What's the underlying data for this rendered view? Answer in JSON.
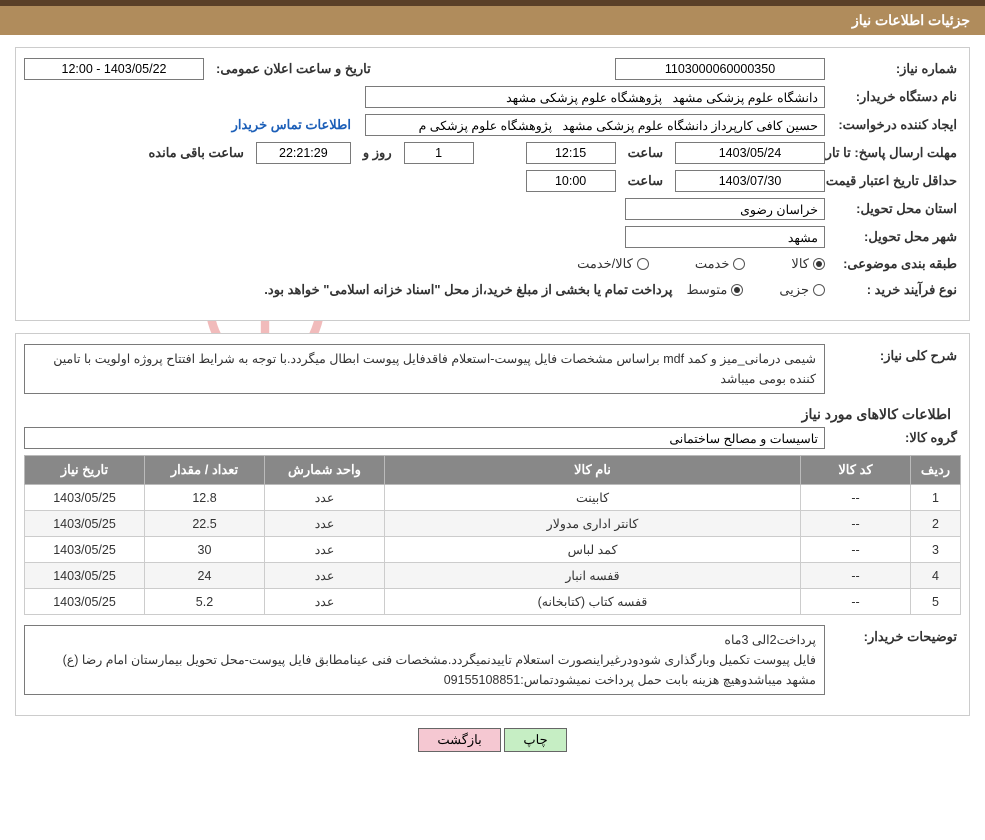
{
  "colors": {
    "topbar": "#5a4028",
    "header": "#b08c5c",
    "header_text": "#ffffff",
    "border": "#cccccc",
    "input_border": "#7a7a7a",
    "link": "#1c5fb8",
    "th_bg": "#888888",
    "btn_print": "#c6eec4",
    "btn_back": "#f5c8d2",
    "watermark": "rgba(150,150,150,0.25)"
  },
  "header": {
    "title": "جزئیات اطلاعات نیاز"
  },
  "fields": {
    "need_number_label": "شماره نیاز:",
    "need_number": "1103000060000350",
    "public_announce_label": "تاریخ و ساعت اعلان عمومی:",
    "public_announce": "1403/05/22 - 12:00",
    "buyer_org_label": "نام دستگاه خریدار:",
    "buyer_org": "دانشگاه علوم پزشکی مشهد   پژوهشگاه علوم پزشکی مشهد",
    "requester_label": "ایجاد کننده درخواست:",
    "requester": "حسین کافی کارپرداز دانشگاه علوم پزشکی مشهد   پژوهشگاه علوم پزشکی م",
    "contact_link": "اطلاعات تماس خریدار",
    "reply_deadline_label": "مهلت ارسال پاسخ:",
    "to_date_label": "تا تاریخ:",
    "reply_date": "1403/05/24",
    "time_label": "ساعت",
    "reply_time": "12:15",
    "days_label": "روز و",
    "days_remaining": "1",
    "countdown": "22:21:29",
    "remaining_label": "ساعت باقی مانده",
    "price_validity_label": "حداقل تاریخ اعتبار قیمت:",
    "price_date": "1403/07/30",
    "price_time": "10:00",
    "province_label": "استان محل تحویل:",
    "province": "خراسان رضوی",
    "city_label": "شهر محل تحویل:",
    "city": "مشهد",
    "category_label": "طبقه بندی موضوعی:",
    "cat_goods": "کالا",
    "cat_service": "خدمت",
    "cat_goods_service": "کالا/خدمت",
    "purchase_type_label": "نوع فرآیند خرید :",
    "pt_minor": "جزیی",
    "pt_medium": "متوسط",
    "payment_note": "پرداخت تمام یا بخشی از مبلغ خرید،از محل \"اسناد خزانه اسلامی\" خواهد بود."
  },
  "detail": {
    "summary_label": "شرح کلی نیاز:",
    "summary": "شیمی درمانی_میز و کمد mdf براساس مشخصات فایل پیوست-استعلام فاقدفایل پیوست ابطال میگردد.با توجه به شرایط افتتاح پروژه اولویت با تامین کننده بومی میباشد",
    "items_heading": "اطلاعات کالاهای مورد نیاز",
    "group_label": "گروه کالا:",
    "group": "تاسیسات و مصالح ساختمانی",
    "buyer_notes_label": "توضیحات خریدار:",
    "buyer_notes": "پرداخت2الی 3ماه\nفایل پیوست تکمیل وبارگذاری شودودرغیراینصورت استعلام تاییدنمیگردد.مشخصات فنی عینامطابق فایل پیوست-محل تحویل بیمارستان امام رضا (ع) مشهد میباشدوهیچ هزینه بابت حمل پرداخت نمیشودتماس:09155108851"
  },
  "table": {
    "columns": [
      "ردیف",
      "کد کالا",
      "نام کالا",
      "واحد شمارش",
      "تعداد / مقدار",
      "تاریخ نیاز"
    ],
    "col_widths": [
      "50px",
      "110px",
      "auto",
      "120px",
      "120px",
      "120px"
    ],
    "rows": [
      [
        "1",
        "--",
        "کابینت",
        "عدد",
        "12.8",
        "1403/05/25"
      ],
      [
        "2",
        "--",
        "کانتر اداری مدولار",
        "عدد",
        "22.5",
        "1403/05/25"
      ],
      [
        "3",
        "--",
        "کمد لباس",
        "عدد",
        "30",
        "1403/05/25"
      ],
      [
        "4",
        "--",
        "قفسه انبار",
        "عدد",
        "24",
        "1403/05/25"
      ],
      [
        "5",
        "--",
        "قفسه کتاب (کتابخانه)",
        "عدد",
        "5.2",
        "1403/05/25"
      ]
    ]
  },
  "buttons": {
    "print": "چاپ",
    "back": "بازگشت"
  },
  "watermark": "AriaTender.neT"
}
